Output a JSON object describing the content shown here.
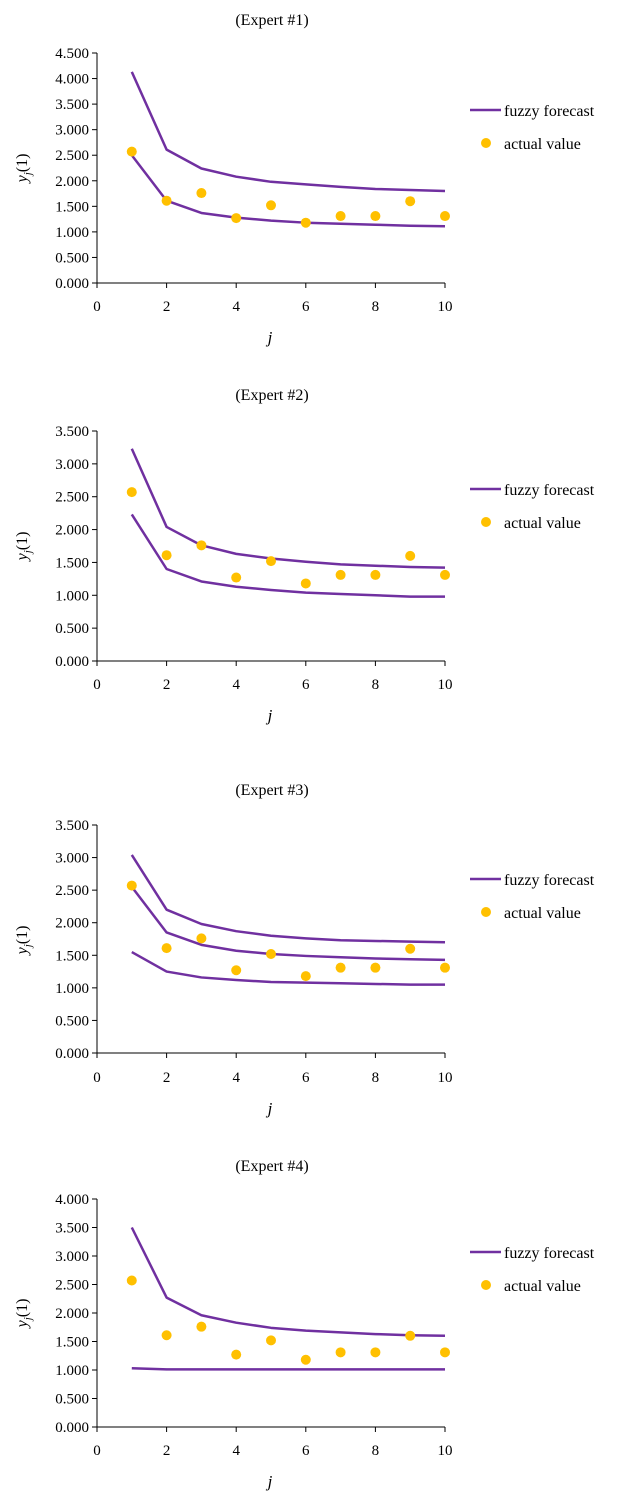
{
  "chart_data": [
    {
      "type": "line",
      "title": "(Expert #1)",
      "xlabel": "j",
      "ylabel_main": "y",
      "ylabel_sub": "j",
      "ylabel_tail": "(1)",
      "xlim": [
        0,
        10
      ],
      "ylim": [
        0,
        4.5
      ],
      "xticks": [
        "0",
        "2",
        "4",
        "6",
        "8",
        "10"
      ],
      "yticks": [
        "0.000",
        "0.500",
        "1.000",
        "1.500",
        "2.000",
        "2.500",
        "3.000",
        "3.500",
        "4.000",
        "4.500"
      ],
      "x": [
        1,
        2,
        3,
        4,
        5,
        6,
        7,
        8,
        9,
        10
      ],
      "series": [
        {
          "name": "fuzzy forecast",
          "kind": "line",
          "values": [
            4.13,
            2.61,
            2.24,
            2.08,
            1.98,
            1.93,
            1.88,
            1.84,
            1.82,
            1.8
          ]
        },
        {
          "kind": "line",
          "values": [
            2.5,
            1.61,
            1.37,
            1.28,
            1.22,
            1.18,
            1.16,
            1.14,
            1.12,
            1.11
          ]
        },
        {
          "name": "actual value",
          "kind": "scatter",
          "values": [
            2.57,
            1.61,
            1.76,
            1.27,
            1.52,
            1.18,
            1.31,
            1.31,
            1.6,
            1.31
          ]
        }
      ],
      "legend_position": "right",
      "colors": {
        "line": "#7030a0",
        "marker": "#ffc000"
      }
    },
    {
      "type": "line",
      "title": "(Expert #2)",
      "xlabel": "j",
      "ylabel_main": "y",
      "ylabel_sub": "j",
      "ylabel_tail": "(1)",
      "xlim": [
        0,
        10
      ],
      "ylim": [
        0,
        3.5
      ],
      "xticks": [
        "0",
        "2",
        "4",
        "6",
        "8",
        "10"
      ],
      "yticks": [
        "0.000",
        "0.500",
        "1.000",
        "1.500",
        "2.000",
        "2.500",
        "3.000",
        "3.500"
      ],
      "x": [
        1,
        2,
        3,
        4,
        5,
        6,
        7,
        8,
        9,
        10
      ],
      "series": [
        {
          "name": "fuzzy forecast",
          "kind": "line",
          "values": [
            3.23,
            2.04,
            1.76,
            1.63,
            1.56,
            1.51,
            1.47,
            1.45,
            1.43,
            1.42
          ]
        },
        {
          "kind": "line",
          "values": [
            2.23,
            1.4,
            1.21,
            1.13,
            1.08,
            1.04,
            1.02,
            1.0,
            0.98,
            0.98
          ]
        },
        {
          "name": "actual value",
          "kind": "scatter",
          "values": [
            2.57,
            1.61,
            1.76,
            1.27,
            1.52,
            1.18,
            1.31,
            1.31,
            1.6,
            1.31
          ]
        }
      ],
      "legend_position": "right",
      "colors": {
        "line": "#7030a0",
        "marker": "#ffc000"
      }
    },
    {
      "type": "line",
      "title": "(Expert #3)",
      "xlabel": "j",
      "ylabel_main": "y",
      "ylabel_sub": "j",
      "ylabel_tail": "(1)",
      "xlim": [
        0,
        10
      ],
      "ylim": [
        0,
        3.5
      ],
      "xticks": [
        "0",
        "2",
        "4",
        "6",
        "8",
        "10"
      ],
      "yticks": [
        "0.000",
        "0.500",
        "1.000",
        "1.500",
        "2.000",
        "2.500",
        "3.000",
        "3.500"
      ],
      "x": [
        1,
        2,
        3,
        4,
        5,
        6,
        7,
        8,
        9,
        10
      ],
      "series": [
        {
          "name": "fuzzy forecast",
          "kind": "line",
          "values": [
            3.04,
            2.2,
            1.98,
            1.87,
            1.8,
            1.76,
            1.73,
            1.72,
            1.71,
            1.7
          ]
        },
        {
          "kind": "line",
          "values": [
            2.55,
            1.85,
            1.66,
            1.57,
            1.52,
            1.49,
            1.47,
            1.45,
            1.44,
            1.43
          ]
        },
        {
          "kind": "line",
          "values": [
            1.55,
            1.25,
            1.16,
            1.12,
            1.09,
            1.08,
            1.07,
            1.06,
            1.05,
            1.05
          ]
        },
        {
          "name": "actual value",
          "kind": "scatter",
          "values": [
            2.57,
            1.61,
            1.76,
            1.27,
            1.52,
            1.18,
            1.31,
            1.31,
            1.6,
            1.31
          ]
        }
      ],
      "legend_position": "right",
      "colors": {
        "line": "#7030a0",
        "marker": "#ffc000"
      }
    },
    {
      "type": "line",
      "title": "(Expert #4)",
      "xlabel": "j",
      "ylabel_main": "y",
      "ylabel_sub": "j",
      "ylabel_tail": "(1)",
      "xlim": [
        0,
        10
      ],
      "ylim": [
        0,
        4.0
      ],
      "xticks": [
        "0",
        "2",
        "4",
        "6",
        "8",
        "10"
      ],
      "yticks": [
        "0.000",
        "0.500",
        "1.000",
        "1.500",
        "2.000",
        "2.500",
        "3.000",
        "3.500",
        "4.000"
      ],
      "x": [
        1,
        2,
        3,
        4,
        5,
        6,
        7,
        8,
        9,
        10
      ],
      "series": [
        {
          "name": "fuzzy forecast",
          "kind": "line",
          "values": [
            3.5,
            2.27,
            1.96,
            1.83,
            1.74,
            1.69,
            1.66,
            1.63,
            1.61,
            1.6
          ]
        },
        {
          "kind": "line",
          "values": [
            1.03,
            1.01,
            1.01,
            1.01,
            1.01,
            1.01,
            1.01,
            1.01,
            1.01,
            1.01
          ]
        },
        {
          "name": "actual value",
          "kind": "scatter",
          "values": [
            2.57,
            1.61,
            1.76,
            1.27,
            1.52,
            1.18,
            1.31,
            1.31,
            1.6,
            1.31
          ]
        }
      ],
      "legend_position": "right",
      "colors": {
        "line": "#7030a0",
        "marker": "#ffc000"
      }
    }
  ]
}
